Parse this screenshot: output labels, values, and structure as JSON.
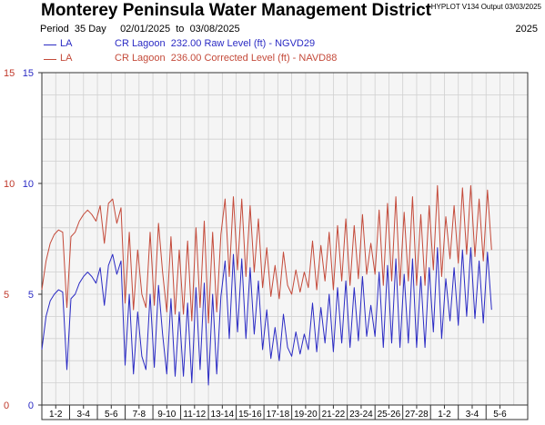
{
  "header": {
    "title": "Monterey Peninsula Water Management District",
    "version": "HYPLOT V134  Output 03/03/2025",
    "period_label": "Period",
    "period_days": "35 Day",
    "date_from": "02/01/2025",
    "date_to_word": "to",
    "date_to": "03/08/2025",
    "year": "2025"
  },
  "legend": [
    {
      "code": "LA",
      "description": "CR Lagoon  232.00 Raw Level (ft) - NGVD29",
      "color": "#2b2bc4"
    },
    {
      "code": "LA",
      "description": "CR Lagoon  236.00 Corrected Level (ft) - NAVD88",
      "color": "#c44a3a"
    }
  ],
  "chart_data": {
    "type": "line",
    "x_unit": "day",
    "x_range": [
      1,
      36
    ],
    "ylim": [
      0,
      15
    ],
    "left_axis_ticks": [
      "0",
      "5",
      "10",
      "15"
    ],
    "right_axis_ticks": [
      "0",
      "5",
      "10",
      "15"
    ],
    "grid": true,
    "x_tick_labels": [
      "1-2",
      "3-4",
      "5-6",
      "7-8",
      "9-10",
      "11-12",
      "13-14",
      "15-16",
      "17-18",
      "19-20",
      "21-22",
      "23-24",
      "25-26",
      "27-28",
      "1-2",
      "3-4",
      "5-6"
    ],
    "series": [
      {
        "name": "CR Lagoon  232.00 Raw Level (ft) - NGVD29",
        "color": "#2b2bc4",
        "x": [
          1.0,
          1.3,
          1.6,
          1.9,
          2.2,
          2.5,
          2.8,
          3.1,
          3.4,
          3.7,
          4.0,
          4.3,
          4.6,
          4.9,
          5.2,
          5.5,
          5.8,
          6.1,
          6.4,
          6.7,
          7.0,
          7.3,
          7.6,
          7.9,
          8.2,
          8.5,
          8.8,
          9.1,
          9.4,
          9.7,
          10.0,
          10.3,
          10.6,
          10.9,
          11.2,
          11.5,
          11.8,
          12.1,
          12.4,
          12.7,
          13.0,
          13.3,
          13.6,
          13.9,
          14.2,
          14.5,
          14.8,
          15.1,
          15.4,
          15.7,
          16.0,
          16.3,
          16.6,
          16.9,
          17.2,
          17.5,
          17.8,
          18.1,
          18.4,
          18.7,
          19.0,
          19.3,
          19.6,
          19.9,
          20.2,
          20.5,
          20.8,
          21.1,
          21.4,
          21.7,
          22.0,
          22.3,
          22.6,
          22.9,
          23.2,
          23.5,
          23.8,
          24.1,
          24.4,
          24.7,
          25.0,
          25.3,
          25.6,
          25.9,
          26.2,
          26.5,
          26.8,
          27.1,
          27.4,
          27.7,
          28.0,
          28.3,
          28.6,
          28.9,
          29.2,
          29.5,
          29.8,
          30.1,
          30.4,
          30.7,
          31.0,
          31.3,
          31.6,
          31.9,
          32.2,
          32.5,
          32.8,
          33.1,
          33.4
        ],
        "y": [
          2.5,
          4.0,
          4.7,
          5.0,
          5.2,
          5.1,
          1.6,
          4.8,
          5.0,
          5.5,
          5.8,
          6.0,
          5.8,
          5.5,
          6.2,
          4.5,
          6.3,
          6.8,
          5.9,
          6.5,
          1.8,
          5.0,
          1.4,
          4.2,
          2.2,
          1.6,
          5.0,
          1.7,
          5.4,
          3.2,
          1.4,
          4.8,
          1.3,
          4.2,
          1.3,
          4.6,
          1.0,
          5.3,
          1.6,
          5.5,
          0.9,
          5.0,
          1.4,
          4.9,
          6.5,
          3.0,
          6.8,
          3.3,
          6.6,
          3.0,
          6.2,
          3.2,
          5.6,
          2.5,
          4.3,
          2.1,
          3.5,
          2.0,
          4.1,
          2.6,
          2.2,
          3.3,
          2.3,
          3.2,
          2.5,
          4.6,
          2.4,
          4.4,
          2.8,
          5.0,
          2.4,
          5.3,
          2.8,
          5.6,
          2.6,
          5.3,
          2.9,
          5.8,
          3.1,
          4.5,
          3.1,
          6.0,
          2.6,
          6.3,
          2.8,
          6.6,
          2.6,
          5.9,
          2.8,
          6.6,
          2.6,
          5.8,
          2.6,
          6.2,
          3.3,
          7.1,
          3.0,
          5.7,
          3.8,
          6.2,
          3.6,
          7.0,
          4.0,
          7.1,
          3.9,
          6.5,
          3.7,
          6.9,
          4.3
        ]
      },
      {
        "name": "CR Lagoon  236.00 Corrected Level (ft) - NAVD88",
        "color": "#c44a3a",
        "x": [
          1.0,
          1.3,
          1.6,
          1.9,
          2.2,
          2.5,
          2.8,
          3.1,
          3.4,
          3.7,
          4.0,
          4.3,
          4.6,
          4.9,
          5.2,
          5.5,
          5.8,
          6.1,
          6.4,
          6.7,
          7.0,
          7.3,
          7.6,
          7.9,
          8.2,
          8.5,
          8.8,
          9.1,
          9.4,
          9.7,
          10.0,
          10.3,
          10.6,
          10.9,
          11.2,
          11.5,
          11.8,
          12.1,
          12.4,
          12.7,
          13.0,
          13.3,
          13.6,
          13.9,
          14.2,
          14.5,
          14.8,
          15.1,
          15.4,
          15.7,
          16.0,
          16.3,
          16.6,
          16.9,
          17.2,
          17.5,
          17.8,
          18.1,
          18.4,
          18.7,
          19.0,
          19.3,
          19.6,
          19.9,
          20.2,
          20.5,
          20.8,
          21.1,
          21.4,
          21.7,
          22.0,
          22.3,
          22.6,
          22.9,
          23.2,
          23.5,
          23.8,
          24.1,
          24.4,
          24.7,
          25.0,
          25.3,
          25.6,
          25.9,
          26.2,
          26.5,
          26.8,
          27.1,
          27.4,
          27.7,
          28.0,
          28.3,
          28.6,
          28.9,
          29.2,
          29.5,
          29.8,
          30.1,
          30.4,
          30.7,
          31.0,
          31.3,
          31.6,
          31.9,
          32.2,
          32.5,
          32.8,
          33.1,
          33.4
        ],
        "y": [
          5.2,
          6.5,
          7.3,
          7.7,
          7.9,
          7.8,
          4.4,
          7.6,
          7.8,
          8.3,
          8.6,
          8.8,
          8.6,
          8.3,
          9.0,
          7.3,
          9.1,
          9.3,
          8.2,
          8.9,
          4.6,
          7.8,
          4.3,
          7.0,
          5.0,
          4.4,
          7.8,
          4.5,
          8.2,
          6.0,
          4.2,
          7.6,
          4.1,
          7.0,
          4.1,
          7.4,
          3.8,
          8.0,
          4.4,
          8.3,
          3.7,
          7.8,
          4.2,
          7.7,
          9.3,
          5.8,
          9.4,
          6.1,
          9.3,
          5.8,
          9.0,
          6.0,
          8.4,
          5.3,
          7.1,
          4.9,
          6.3,
          4.8,
          6.9,
          5.4,
          5.0,
          6.1,
          5.1,
          6.0,
          5.3,
          7.4,
          5.2,
          7.2,
          5.6,
          7.8,
          5.2,
          8.1,
          5.6,
          8.4,
          5.4,
          8.1,
          5.7,
          8.6,
          5.9,
          7.3,
          5.9,
          8.8,
          5.4,
          9.1,
          5.6,
          9.4,
          5.4,
          8.7,
          5.6,
          9.4,
          5.4,
          8.6,
          5.4,
          9.0,
          6.1,
          9.9,
          5.8,
          8.5,
          6.6,
          9.0,
          6.4,
          9.8,
          6.8,
          9.9,
          6.7,
          9.3,
          6.5,
          9.7,
          7.0
        ]
      }
    ]
  },
  "style": {
    "left_axis_color": "#c0392b",
    "right_axis_color": "#2b2bc4",
    "grid_color": "#d0d0d0",
    "plot_bg": "#f5f5f5"
  }
}
